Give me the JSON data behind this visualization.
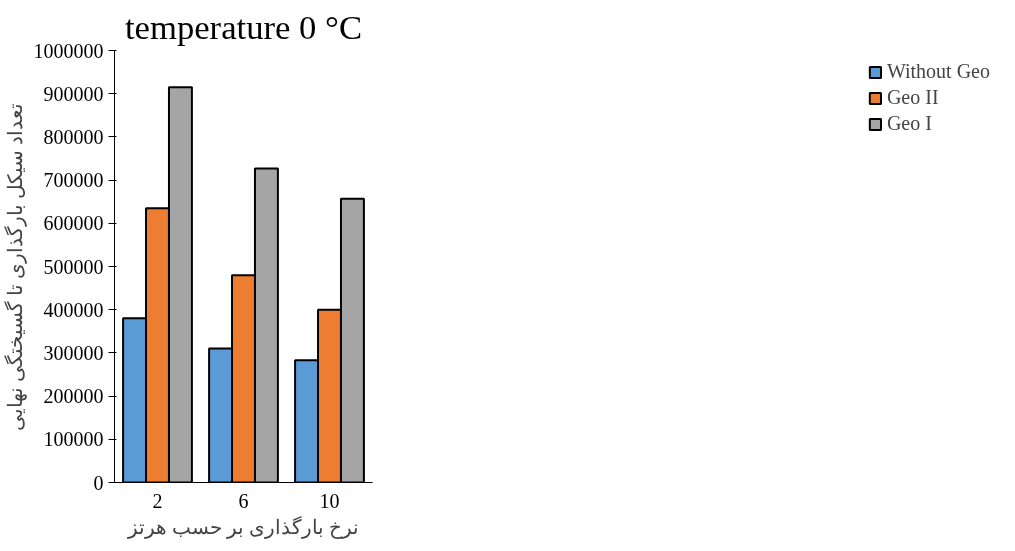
{
  "chart_data": {
    "type": "bar",
    "title": "temperature 0 °C",
    "xlabel": "نرخ بارگذاری بر حسب هرتز",
    "ylabel": "تعداد سیکل بارگذاری تا گسیختگی نهایی",
    "categories": [
      "2",
      "6",
      "10"
    ],
    "series": [
      {
        "name": "Without Geo",
        "color": "#5b9bd5",
        "values": [
          380000,
          310000,
          283000
        ]
      },
      {
        "name": "Geo II",
        "color": "#ed7d31",
        "values": [
          635000,
          480000,
          400000
        ]
      },
      {
        "name": "Geo I",
        "color": "#a5a5a5",
        "values": [
          915000,
          727000,
          657000
        ]
      }
    ],
    "ylim": [
      0,
      1000000
    ],
    "yticks": [
      0,
      100000,
      200000,
      300000,
      400000,
      500000,
      600000,
      700000,
      800000,
      900000,
      1000000
    ],
    "grid": false,
    "legend": "right"
  }
}
